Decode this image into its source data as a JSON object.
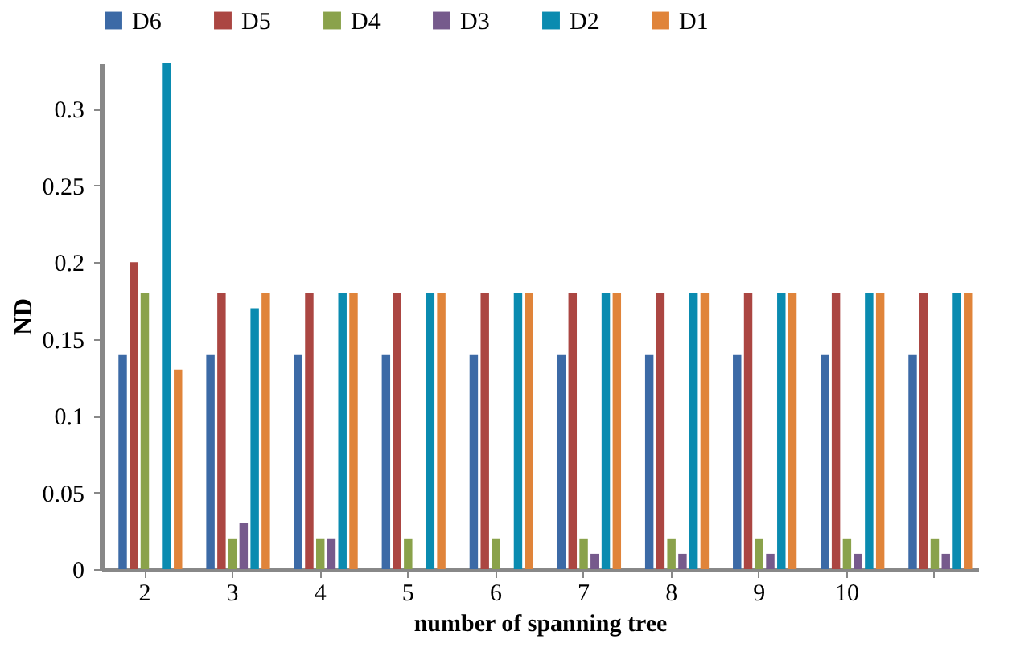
{
  "chart_data": {
    "type": "bar",
    "xlabel": "number of spanning tree",
    "ylabel": "ND",
    "categories": [
      "2",
      "3",
      "4",
      "5",
      "6",
      "7",
      "8",
      "9",
      "10",
      null
    ],
    "series": [
      {
        "name": "D6",
        "color": "#3c6aa6",
        "values": [
          0.14,
          0.14,
          0.14,
          0.14,
          0.14,
          0.14,
          0.14,
          0.14,
          0.14,
          0.14
        ]
      },
      {
        "name": "D5",
        "color": "#ab4642",
        "values": [
          0.2,
          0.18,
          0.18,
          0.18,
          0.18,
          0.18,
          0.18,
          0.18,
          0.18,
          0.18
        ]
      },
      {
        "name": "D4",
        "color": "#8aa24b",
        "values": [
          0.18,
          0.02,
          0.02,
          0.02,
          0.02,
          0.02,
          0.02,
          0.02,
          0.02,
          0.02
        ]
      },
      {
        "name": "D3",
        "color": "#765a8c",
        "values": [
          0,
          0.03,
          0.02,
          0,
          0,
          0.01,
          0.01,
          0.01,
          0.01,
          0.01
        ]
      },
      {
        "name": "D2",
        "color": "#0a8bb0",
        "values": [
          0.33,
          0.17,
          0.18,
          0.18,
          0.18,
          0.18,
          0.18,
          0.18,
          0.18,
          0.18
        ]
      },
      {
        "name": "D1",
        "color": "#e0843a",
        "values": [
          0.13,
          0.18,
          0.18,
          0.18,
          0.18,
          0.18,
          0.18,
          0.18,
          0.18,
          0.18
        ]
      }
    ],
    "ylim": [
      0,
      0.33
    ],
    "yticks": [
      0,
      0.05,
      0.1,
      0.15,
      0.2,
      0.25,
      0.3
    ],
    "grid": false,
    "legend": "top"
  }
}
